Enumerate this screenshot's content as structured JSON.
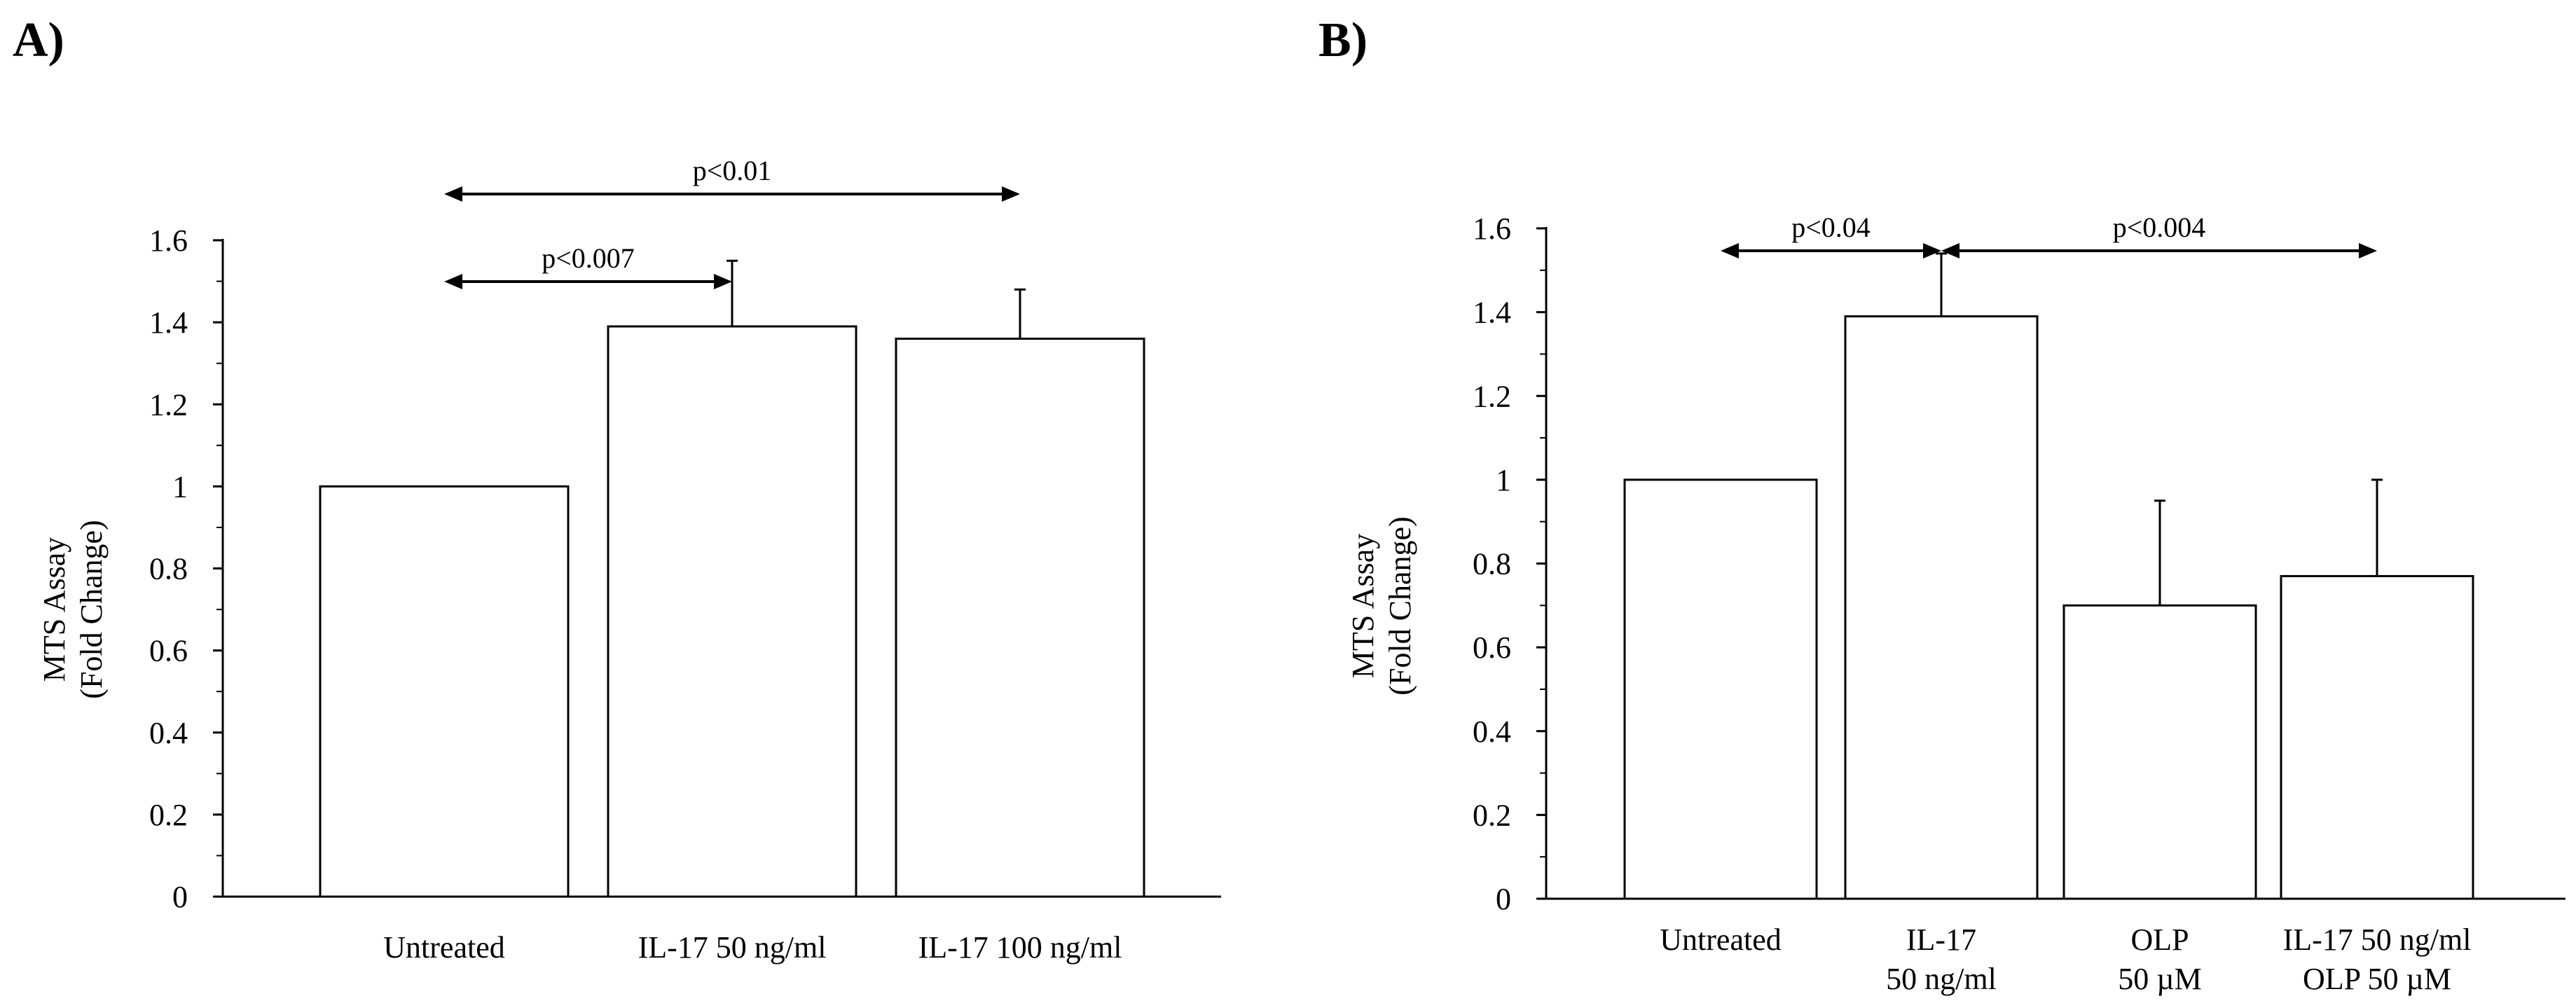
{
  "chart_data": [
    {
      "panel": "A)",
      "type": "bar",
      "ylabel_line1": "MTS Assay",
      "ylabel_line2": "(Fold Change)",
      "ylim": [
        0,
        1.6
      ],
      "yticks": [
        "0",
        "0.2",
        "0.4",
        "0.6",
        "0.8",
        "1",
        "1.2",
        "1.4",
        "1.6"
      ],
      "categories": [
        [
          "Untreated"
        ],
        [
          "IL-17 50 ng/ml"
        ],
        [
          "IL-17 100 ng/ml"
        ]
      ],
      "values": [
        1.0,
        1.39,
        1.36
      ],
      "errors": [
        0,
        0.16,
        0.12
      ],
      "significance": [
        {
          "label": "p<0.007",
          "from": 0,
          "to": 1
        },
        {
          "label": "p<0.01",
          "from": 0,
          "to": 2
        }
      ]
    },
    {
      "panel": "B)",
      "type": "bar",
      "ylabel_line1": "MTS Assay",
      "ylabel_line2": "(Fold Change)",
      "ylim": [
        0,
        1.6
      ],
      "yticks": [
        "0",
        "0.2",
        "0.4",
        "0.6",
        "0.8",
        "1",
        "1.2",
        "1.4",
        "1.6"
      ],
      "categories": [
        [
          "Untreated"
        ],
        [
          "IL-17",
          "50 ng/ml"
        ],
        [
          "OLP",
          "50 µM"
        ],
        [
          "IL-17 50 ng/ml",
          "OLP 50 µM"
        ]
      ],
      "values": [
        1.0,
        1.39,
        0.7,
        0.77
      ],
      "errors": [
        0,
        0.15,
        0.25,
        0.23
      ],
      "significance": [
        {
          "label": "p<0.04",
          "from": 0,
          "to": 1
        },
        {
          "label": "p<0.004",
          "from": 1,
          "to": 3
        }
      ]
    }
  ]
}
